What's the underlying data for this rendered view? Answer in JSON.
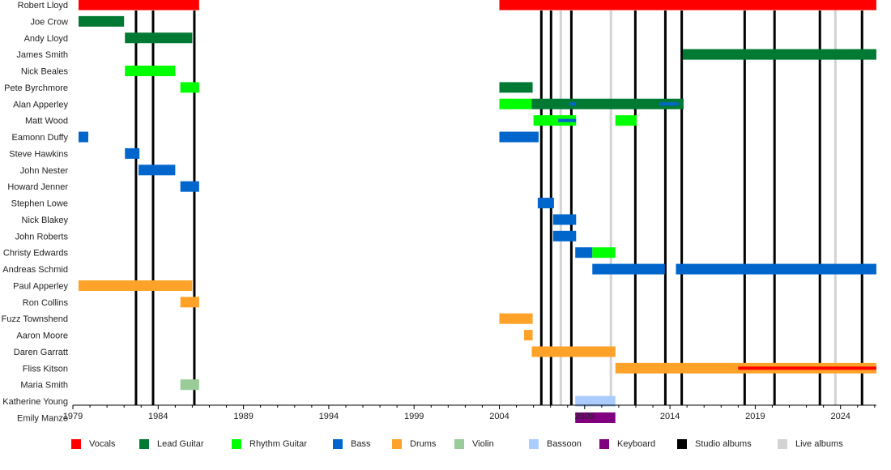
{
  "chart_data": {
    "type": "timeline",
    "xlim": [
      1979,
      2026.1
    ],
    "x_ticks": [
      "1979",
      "1984",
      "1989",
      "1994",
      "1999",
      "2004",
      "2009",
      "2014",
      "2019",
      "2024"
    ],
    "colors": {
      "Vocals": "#ff0000",
      "Lead Guitar": "#007a33",
      "Rhythm Guitar": "#00ff00",
      "Bass": "#0066cc",
      "Drums": "#ffa229",
      "Violin": "#99cc99",
      "Bassoon": "#aaccff",
      "Keyboard": "#800080",
      "Studio albums": "#000000",
      "Live albums": "#d3d3d3"
    },
    "legend": [
      "Vocals",
      "Lead Guitar",
      "Rhythm Guitar",
      "Bass",
      "Drums",
      "Violin",
      "Bassoon",
      "Keyboard",
      "Studio albums",
      "Live albums"
    ],
    "members": [
      {
        "name": "Robert Lloyd",
        "spans": [
          {
            "role": "Vocals",
            "start": 1979.33,
            "end": 1986.4
          },
          {
            "role": "Vocals",
            "start": 2004.0,
            "end": 2026.1
          }
        ]
      },
      {
        "name": "Joe Crow",
        "spans": [
          {
            "role": "Lead Guitar",
            "start": 1979.33,
            "end": 1982.0
          }
        ]
      },
      {
        "name": "Andy Lloyd",
        "spans": [
          {
            "role": "Lead Guitar",
            "start": 1982.05,
            "end": 1986.0
          }
        ]
      },
      {
        "name": "James Smith",
        "spans": [
          {
            "role": "Lead Guitar",
            "start": 2014.75,
            "end": 2026.1
          }
        ]
      },
      {
        "name": "Nick Beales",
        "spans": [
          {
            "role": "Rhythm Guitar",
            "start": 1982.05,
            "end": 1985.0
          }
        ]
      },
      {
        "name": "Pete Byrchmore",
        "spans": [
          {
            "role": "Rhythm Guitar",
            "start": 1985.3,
            "end": 1986.4
          },
          {
            "role": "Lead Guitar",
            "start": 2004.0,
            "end": 2005.95
          }
        ]
      },
      {
        "name": "Alan Apperley",
        "spans": [
          {
            "role": "Rhythm Guitar",
            "start": 2004.0,
            "end": 2005.9
          },
          {
            "role": "Lead Guitar",
            "start": 2005.9,
            "end": 2014.8
          },
          {
            "role": "Bass",
            "start": 2008.1,
            "end": 2008.5,
            "secondary": true
          },
          {
            "role": "Bass",
            "start": 2013.4,
            "end": 2014.5,
            "secondary": true
          }
        ]
      },
      {
        "name": "Matt Wood",
        "spans": [
          {
            "role": "Rhythm Guitar",
            "start": 2006.0,
            "end": 2008.5
          },
          {
            "role": "Bass",
            "start": 2007.45,
            "end": 2008.5,
            "secondary": true
          },
          {
            "role": "Rhythm Guitar",
            "start": 2010.8,
            "end": 2012.05
          }
        ]
      },
      {
        "name": "Eamonn Duffy",
        "spans": [
          {
            "role": "Bass",
            "start": 1979.33,
            "end": 1979.9
          },
          {
            "role": "Bass",
            "start": 2004.0,
            "end": 2006.3
          }
        ]
      },
      {
        "name": "Steve Hawkins",
        "spans": [
          {
            "role": "Bass",
            "start": 1982.05,
            "end": 1982.9
          }
        ]
      },
      {
        "name": "John Nester",
        "spans": [
          {
            "role": "Bass",
            "start": 1982.85,
            "end": 1985.0
          }
        ]
      },
      {
        "name": "Howard Jenner",
        "spans": [
          {
            "role": "Bass",
            "start": 1985.3,
            "end": 1986.4
          }
        ]
      },
      {
        "name": "Stephen Lowe",
        "spans": [
          {
            "role": "Bass",
            "start": 2006.25,
            "end": 2007.2
          }
        ]
      },
      {
        "name": "Nick Blakey",
        "spans": [
          {
            "role": "Bass",
            "start": 2007.15,
            "end": 2008.5
          }
        ]
      },
      {
        "name": "John Roberts",
        "spans": [
          {
            "role": "Bass",
            "start": 2007.15,
            "end": 2008.5
          }
        ]
      },
      {
        "name": "Christy Edwards",
        "spans": [
          {
            "role": "Bass",
            "start": 2008.45,
            "end": 2009.45
          },
          {
            "role": "Rhythm Guitar",
            "start": 2009.45,
            "end": 2010.8
          }
        ]
      },
      {
        "name": "Andreas Schmid",
        "spans": [
          {
            "role": "Bass",
            "start": 2009.45,
            "end": 2013.7
          },
          {
            "role": "Bass",
            "start": 2014.35,
            "end": 2026.1
          }
        ]
      },
      {
        "name": "Paul Apperley",
        "spans": [
          {
            "role": "Drums",
            "start": 1979.33,
            "end": 1986.0
          }
        ]
      },
      {
        "name": "Ron Collins",
        "spans": [
          {
            "role": "Drums",
            "start": 1985.3,
            "end": 1986.4
          }
        ]
      },
      {
        "name": "Fuzz Townshend",
        "spans": [
          {
            "role": "Drums",
            "start": 2004.0,
            "end": 2005.95
          }
        ]
      },
      {
        "name": "Aaron Moore",
        "spans": [
          {
            "role": "Drums",
            "start": 2005.45,
            "end": 2005.95
          }
        ]
      },
      {
        "name": "Daren Garratt",
        "spans": [
          {
            "role": "Drums",
            "start": 2005.9,
            "end": 2010.8
          }
        ]
      },
      {
        "name": "Fliss Kitson",
        "spans": [
          {
            "role": "Drums",
            "start": 2010.8,
            "end": 2026.1
          },
          {
            "role": "Vocals",
            "start": 2018.0,
            "end": 2026.1,
            "secondary": true
          }
        ]
      },
      {
        "name": "Maria Smith",
        "spans": [
          {
            "role": "Violin",
            "start": 1985.3,
            "end": 1986.4
          }
        ]
      },
      {
        "name": "Katherine Young",
        "spans": [
          {
            "role": "Bassoon",
            "start": 2008.45,
            "end": 2010.8
          }
        ]
      },
      {
        "name": "Emily Manzo",
        "spans": [
          {
            "role": "Keyboard",
            "start": 2008.45,
            "end": 2010.8
          }
        ]
      }
    ],
    "studio_albums": [
      1982.7,
      1983.7,
      1986.12,
      2006.46,
      2007.03,
      2008.22,
      2011.97,
      2013.73,
      2014.69,
      2018.38,
      2020.13,
      2022.79,
      2025.26
    ],
    "live_albums": [
      2007.6,
      2010.54,
      2023.7
    ]
  }
}
